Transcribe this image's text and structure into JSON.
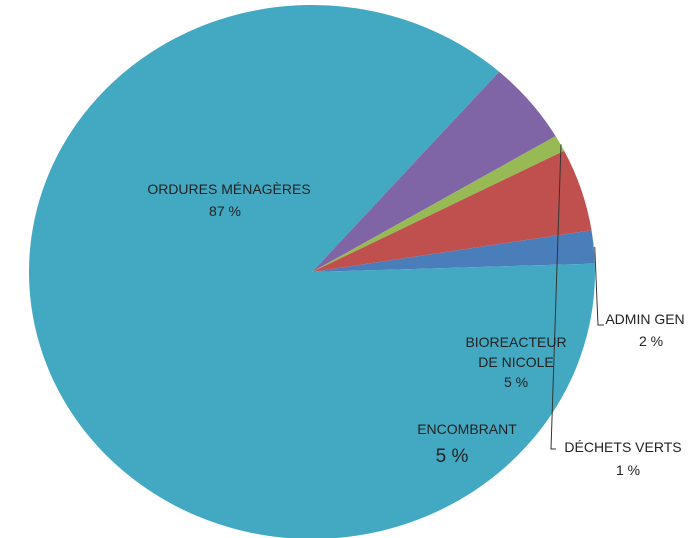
{
  "chart_data": {
    "type": "pie",
    "unit": "%",
    "series": [
      {
        "name": "",
        "slices": [
          {
            "key": "admin",
            "label": "ADMIN GEN",
            "value": 2,
            "value_label": "2 %",
            "color": "#4A7EBB"
          },
          {
            "key": "ordures",
            "label": "ORDURES MÉNAGÈRES",
            "value": 87,
            "value_label": "87 %",
            "color": "#43A9C2"
          },
          {
            "key": "encombrant",
            "label": "ENCOMBRANT",
            "value": 5,
            "value_label": "5 %",
            "color": "#7F65A6"
          },
          {
            "key": "dechets",
            "label": "DÉCHETS VERTS",
            "value": 1,
            "value_label": "1 %",
            "color": "#97BA55"
          },
          {
            "key": "bioreacteur",
            "label": "BIOREACTEUR DE NICOLE",
            "label_lines": [
              "BIOREACTEUR",
              "DE NICOLE"
            ],
            "value": 5,
            "value_label": "5 %",
            "color": "#C0504D"
          }
        ]
      }
    ],
    "legend": "none",
    "data_labels": "category and percentage"
  }
}
